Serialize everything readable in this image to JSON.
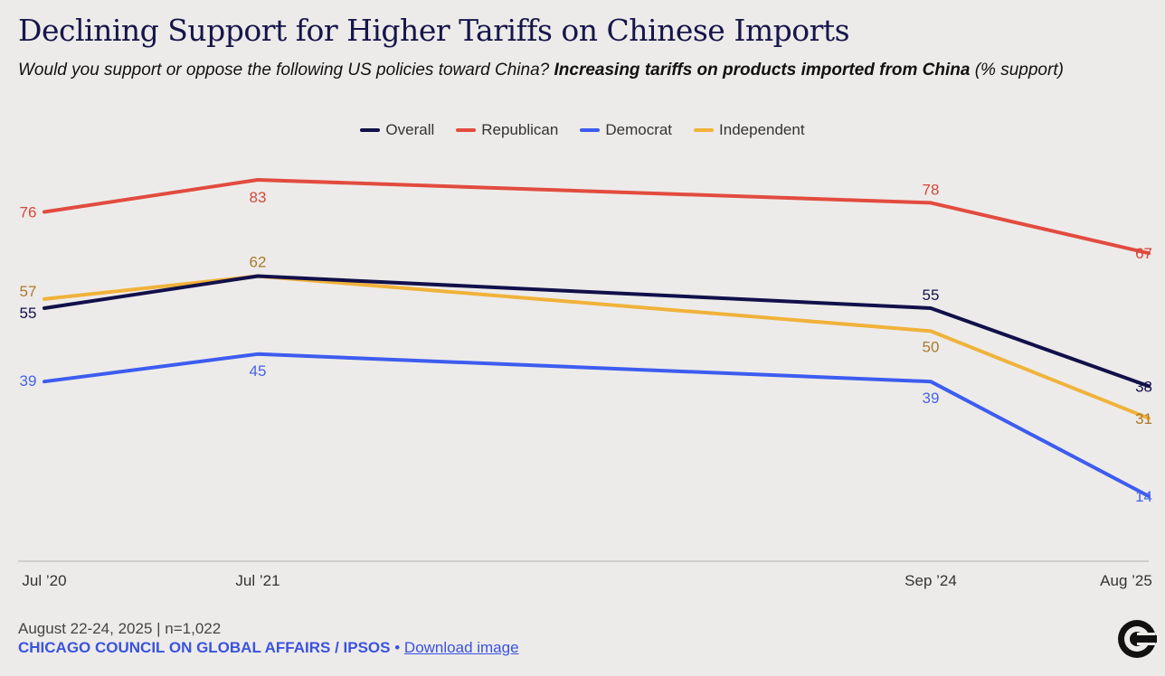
{
  "title": "Declining Support for Higher Tariffs on Chinese Imports",
  "subtitle": {
    "question": "Would you support or oppose the following US policies toward China?",
    "emphasis": "Increasing tariffs on products imported from China",
    "suffix": "(% support)"
  },
  "chart_data": {
    "type": "line",
    "x": [
      "Jul ’20",
      "Jul ’21",
      "Sep ’24",
      "Aug ’25"
    ],
    "ylim": [
      0,
      100
    ],
    "grid": false,
    "legend_position": "top-center",
    "series": [
      {
        "name": "Overall",
        "color": "#12104a",
        "values": [
          55,
          62,
          55,
          38
        ]
      },
      {
        "name": "Republican",
        "color": "#e24b3f",
        "values": [
          76,
          83,
          78,
          67
        ]
      },
      {
        "name": "Democrat",
        "color": "#3d5cf0",
        "values": [
          39,
          45,
          39,
          14
        ]
      },
      {
        "name": "Independent",
        "color": "#f0b23a",
        "values": [
          57,
          62,
          50,
          31
        ]
      }
    ]
  },
  "footer": {
    "date_sample": "August 22-24, 2025 | n=1,022",
    "source": "CHICAGO COUNCIL ON GLOBAL AFFAIRS / IPSOS",
    "separator": "•",
    "download_label": "Download image"
  },
  "logo_icon": "chicago-council-logo-icon"
}
